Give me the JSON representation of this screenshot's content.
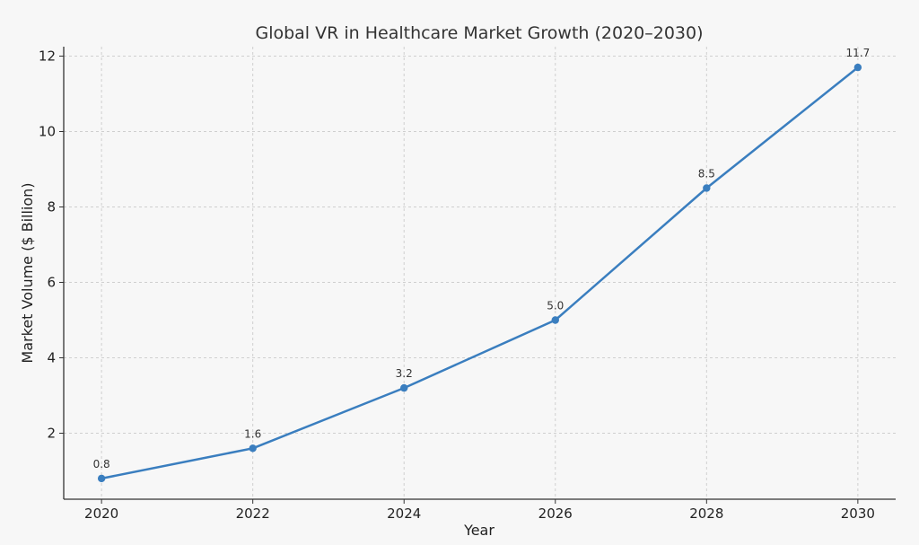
{
  "chart_data": {
    "type": "line",
    "title": "Global VR in Healthcare Market Growth (2020–2030)",
    "xlabel": "Year",
    "ylabel": "Market Volume ($ Billion)",
    "x": [
      2020,
      2022,
      2024,
      2026,
      2028,
      2030
    ],
    "series": [
      {
        "values": [
          0.8,
          1.6,
          3.2,
          5.0,
          8.5,
          11.7
        ],
        "labels": [
          "0.8",
          "1.6",
          "3.2",
          "5.0",
          "8.5",
          "11.7"
        ],
        "color": "#3a7ebf"
      }
    ],
    "xlim": [
      2019.5,
      2030.5
    ],
    "ylim": [
      0.25,
      12.25
    ],
    "xticks": [
      2020,
      2022,
      2024,
      2026,
      2028,
      2030
    ],
    "yticks": [
      2,
      4,
      6,
      8,
      10,
      12
    ],
    "grid": true,
    "legend": "none"
  }
}
